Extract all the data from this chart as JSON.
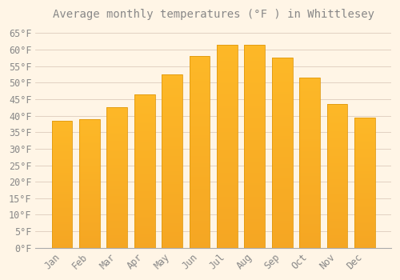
{
  "title": "Average monthly temperatures (°F ) in Whittlesey",
  "months": [
    "Jan",
    "Feb",
    "Mar",
    "Apr",
    "May",
    "Jun",
    "Jul",
    "Aug",
    "Sep",
    "Oct",
    "Nov",
    "Dec"
  ],
  "values": [
    38.5,
    39.0,
    42.5,
    46.5,
    52.5,
    58.0,
    61.5,
    61.5,
    57.5,
    51.5,
    43.5,
    39.5
  ],
  "bar_color_top": "#FDB827",
  "bar_color_bottom": "#F5A623",
  "bar_edge_color": "#E09A10",
  "background_color": "#FFF5E6",
  "plot_bg_color": "#FFF5E6",
  "grid_color": "#DDCCBB",
  "text_color": "#888888",
  "axis_color": "#BBBBBB",
  "ylim": [
    0,
    67
  ],
  "ytick_step": 5,
  "title_fontsize": 10,
  "tick_fontsize": 8.5
}
